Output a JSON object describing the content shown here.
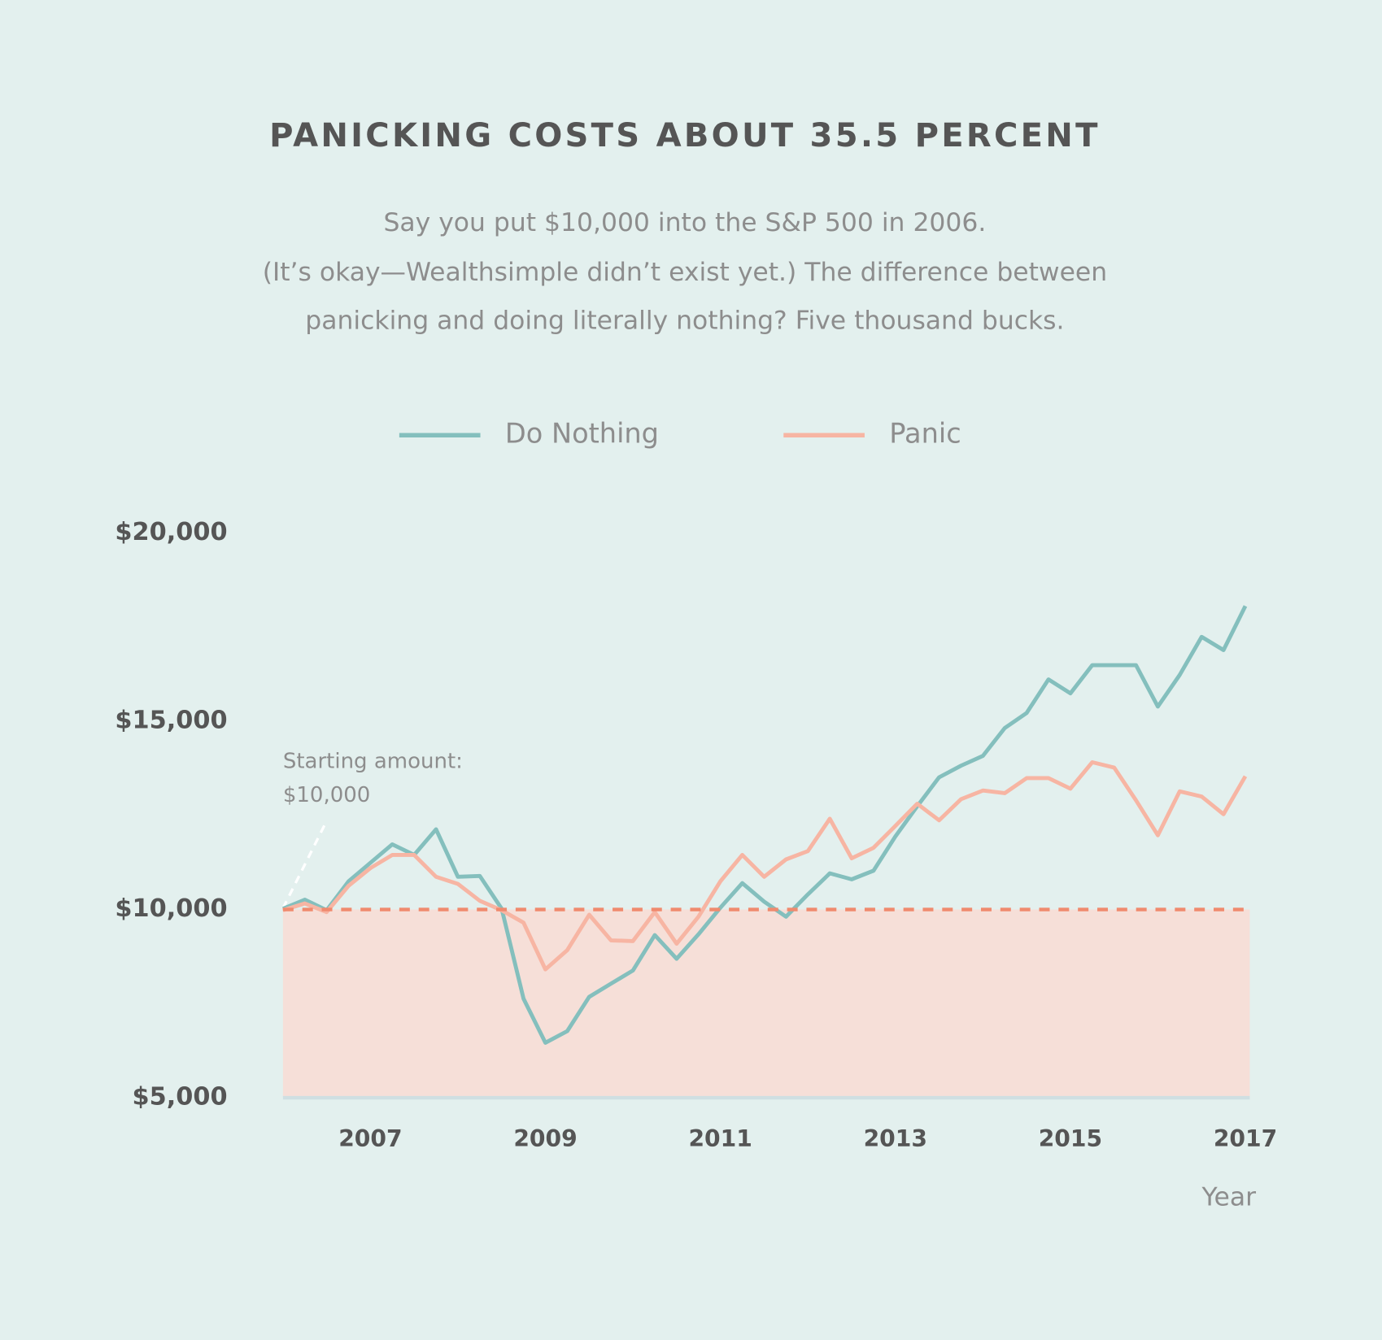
{
  "chart_data": {
    "type": "line",
    "title": "PANICKING COSTS ABOUT 35.5 PERCENT",
    "subtitle": [
      "Say you put $10,000 into the S&P 500 in 2006.",
      "(It’s okay—Wealthsimple didn’t exist yet.) The difference between",
      "panicking and doing literally nothing? Five thousand bucks."
    ],
    "x": [
      2006,
      2006.25,
      2006.5,
      2006.75,
      2007,
      2007.25,
      2007.5,
      2007.75,
      2008,
      2008.25,
      2008.5,
      2008.75,
      2009,
      2009.25,
      2009.5,
      2009.75,
      2010,
      2010.25,
      2010.5,
      2010.75,
      2011,
      2011.25,
      2011.5,
      2011.75,
      2012,
      2012.25,
      2012.5,
      2012.75,
      2013,
      2013.25,
      2013.5,
      2013.75,
      2014,
      2014.25,
      2014.5,
      2014.75,
      2015,
      2015.25,
      2015.5,
      2015.75,
      2016,
      2016.25,
      2016.5,
      2016.75,
      2017
    ],
    "series": [
      {
        "name": "Do Nothing",
        "color": "#84bfbd",
        "values": [
          10020,
          10260,
          9980,
          10750,
          11240,
          11730,
          11450,
          12130,
          10870,
          10890,
          10020,
          7630,
          6460,
          6770,
          7680,
          8030,
          8380,
          9320,
          8690,
          9340,
          10050,
          10700,
          10210,
          9810,
          10400,
          10960,
          10800,
          11030,
          11940,
          12740,
          13510,
          13820,
          14080,
          14820,
          15220,
          16110,
          15740,
          16490,
          16490,
          16490,
          15390,
          16230,
          17240,
          16890,
          18060
        ]
      },
      {
        "name": "Panic",
        "color": "#f7b5a3",
        "values": [
          9980,
          10160,
          9930,
          10630,
          11100,
          11450,
          11450,
          10870,
          10680,
          10230,
          9980,
          9650,
          8410,
          8920,
          9860,
          9180,
          9160,
          9930,
          9090,
          9810,
          10750,
          11450,
          10870,
          11330,
          11550,
          12410,
          11360,
          11640,
          12220,
          12810,
          12370,
          12930,
          13160,
          13090,
          13490,
          13490,
          13210,
          13910,
          13770,
          12900,
          11970,
          13140,
          13000,
          12530,
          13540
        ]
      }
    ],
    "xlim": [
      2006,
      2017
    ],
    "xticks": [
      2007,
      2009,
      2011,
      2013,
      2015,
      2017
    ],
    "xlabel": "Year",
    "ylim": [
      5000,
      20000
    ],
    "yticks": [
      {
        "value": 5000,
        "label": "$5,000"
      },
      {
        "value": 10000,
        "label": "$10,000"
      },
      {
        "value": 15000,
        "label": "$15,000"
      },
      {
        "value": 20000,
        "label": "$20,000"
      }
    ],
    "baseline": 10000,
    "baseline_color": "#f08a6e",
    "baseline_fill": "#f6dfd8",
    "annotation": [
      "Starting amount:",
      "$10,000"
    ],
    "legend": "top"
  }
}
